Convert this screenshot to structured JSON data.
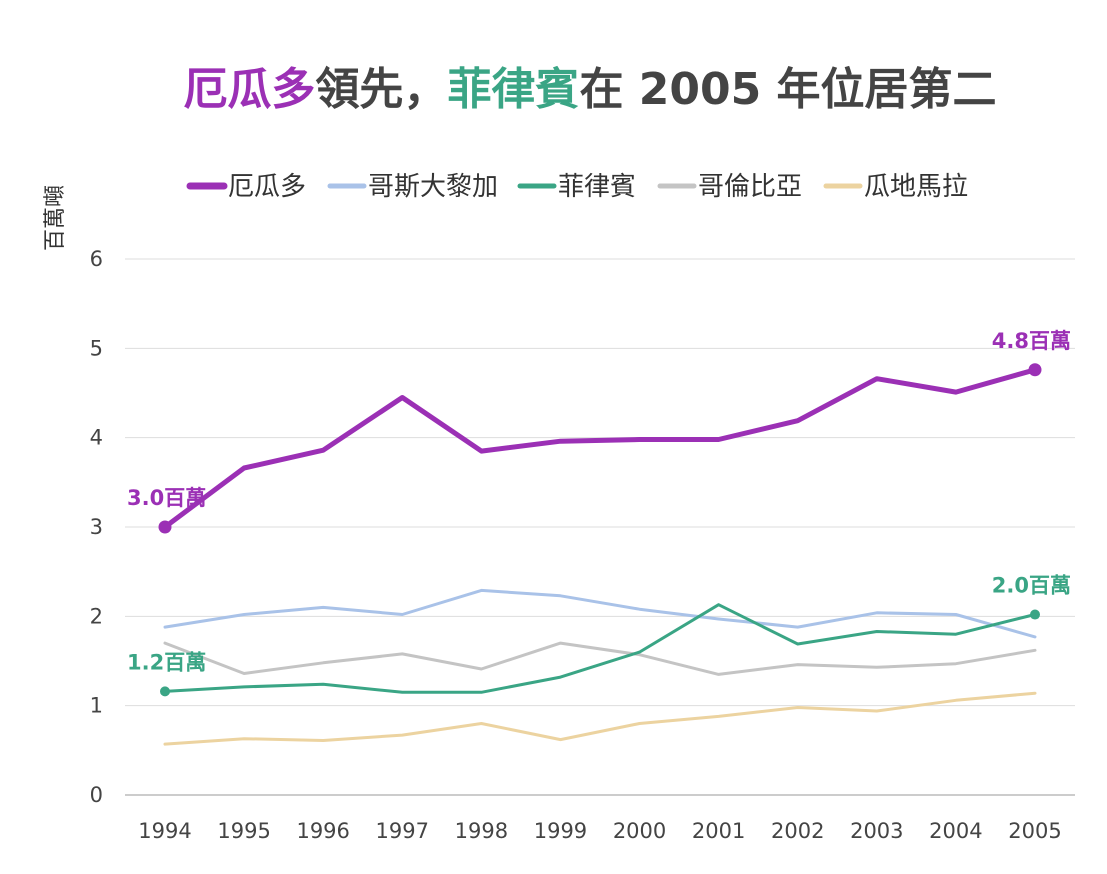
{
  "title": {
    "part1": "厄瓜多",
    "part2": "領先，",
    "part3": "菲律賓",
    "part4": "在 2005 年位居第二",
    "color_part1": "#9b30b5",
    "color_part3": "#3aa585",
    "color_rest": "#444444"
  },
  "chart_data": {
    "type": "line",
    "ylabel": "百萬噸",
    "ylim": [
      0,
      6
    ],
    "yticks": [
      "0",
      "1",
      "2",
      "3",
      "4",
      "5",
      "6"
    ],
    "x": [
      "1994",
      "1995",
      "1996",
      "1997",
      "1998",
      "1999",
      "2000",
      "2001",
      "2002",
      "2003",
      "2004",
      "2005"
    ],
    "grid": true,
    "legend_position": "top",
    "series": [
      {
        "name": "厄瓜多",
        "color": "#9b30b5",
        "width": 5,
        "values": [
          3.0,
          3.66,
          3.86,
          4.45,
          3.85,
          3.96,
          3.98,
          3.98,
          4.19,
          4.66,
          4.51,
          4.76
        ]
      },
      {
        "name": "哥斯大黎加",
        "color": "#a9c2e8",
        "width": 3,
        "values": [
          1.88,
          2.02,
          2.1,
          2.02,
          2.29,
          2.23,
          2.08,
          1.97,
          1.88,
          2.04,
          2.02,
          1.77
        ]
      },
      {
        "name": "菲律賓",
        "color": "#3aa585",
        "width": 3,
        "values": [
          1.16,
          1.21,
          1.24,
          1.15,
          1.15,
          1.32,
          1.6,
          2.13,
          1.69,
          1.83,
          1.8,
          2.02
        ]
      },
      {
        "name": "哥倫比亞",
        "color": "#c4c4c4",
        "width": 3,
        "values": [
          1.7,
          1.36,
          1.48,
          1.58,
          1.41,
          1.7,
          1.57,
          1.35,
          1.46,
          1.43,
          1.47,
          1.62
        ]
      },
      {
        "name": "瓜地馬拉",
        "color": "#ecd3a0",
        "width": 3,
        "values": [
          0.57,
          0.63,
          0.61,
          0.67,
          0.8,
          0.62,
          0.8,
          0.88,
          0.98,
          0.94,
          1.06,
          1.14
        ]
      }
    ],
    "annotations": [
      {
        "text": "3.0百萬",
        "series": 0,
        "index": 0,
        "color": "#9b30b5"
      },
      {
        "text": "4.8百萬",
        "series": 0,
        "index": 11,
        "color": "#9b30b5"
      },
      {
        "text": "1.2百萬",
        "series": 2,
        "index": 0,
        "color": "#3aa585"
      },
      {
        "text": "2.0百萬",
        "series": 2,
        "index": 11,
        "color": "#3aa585"
      }
    ]
  }
}
